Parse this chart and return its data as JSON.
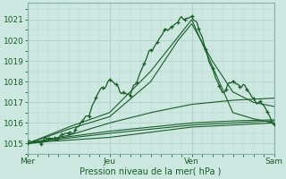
{
  "xlabel": "Pression niveau de la mer( hPa )",
  "bg_color": "#cce8e0",
  "grid_color": "#b8d4ce",
  "line_color": "#1a5c2a",
  "xlim": [
    0,
    72
  ],
  "ylim": [
    1014.5,
    1021.8
  ],
  "yticks": [
    1015,
    1016,
    1017,
    1018,
    1019,
    1020,
    1021
  ],
  "xtick_positions": [
    0,
    24,
    48,
    72
  ],
  "xtick_labels": [
    "Mer",
    "Jeu",
    "Ven",
    "Sam"
  ],
  "figsize": [
    3.2,
    2.0
  ],
  "dpi": 100
}
